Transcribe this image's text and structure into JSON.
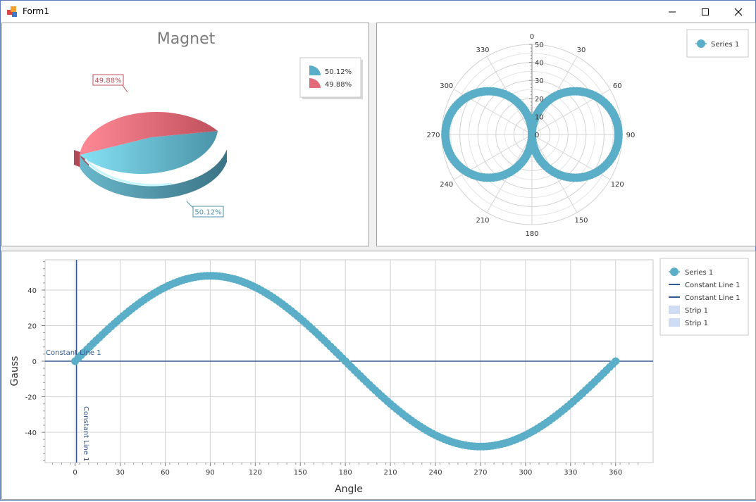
{
  "window": {
    "title": "Form1"
  },
  "pie": {
    "title": "Magnet",
    "legend": [
      "50.12%",
      "49.88%"
    ],
    "label_blue": "50.12%",
    "label_red": "49.88%",
    "colors": {
      "blue": "#5aaec8",
      "red": "#e36b79"
    }
  },
  "polar": {
    "legend": "Series 1",
    "angle_labels": [
      "0",
      "30",
      "60",
      "90",
      "120",
      "150",
      "180",
      "210",
      "240",
      "270",
      "300",
      "330"
    ],
    "radial_labels": [
      "0",
      "10",
      "20",
      "30",
      "40",
      "50"
    ]
  },
  "line": {
    "legend": [
      "Series 1",
      "Constant Line 1",
      "Constant Line 1",
      "Strip 1",
      "Strip 1"
    ],
    "const_h_label": "Constant Line 1",
    "const_v_label": "Constant Line 1",
    "xlabel": "Angle",
    "ylabel": "Gauss",
    "xticks": [
      "0",
      "30",
      "60",
      "90",
      "120",
      "150",
      "180",
      "210",
      "240",
      "270",
      "300",
      "330",
      "360"
    ],
    "yticks": [
      "40",
      "20",
      "0",
      "-20",
      "-40"
    ]
  },
  "chart_data": [
    {
      "type": "pie",
      "title": "Magnet",
      "categories": [
        "50.12%",
        "49.88%"
      ],
      "values": [
        50.12,
        49.88
      ],
      "colors": [
        "#5aaec8",
        "#e36b79"
      ],
      "legend": "top-right"
    },
    {
      "type": "scatter",
      "subtype": "polar",
      "series": [
        {
          "name": "Series 1",
          "function": "r = 48*|sin(theta)|",
          "theta_range": [
            0,
            360
          ],
          "step": 2
        }
      ],
      "angle_ticks": [
        0,
        30,
        60,
        90,
        120,
        150,
        180,
        210,
        240,
        270,
        300,
        330
      ],
      "radial_ticks": [
        0,
        10,
        20,
        30,
        40,
        50
      ],
      "rlim": [
        0,
        50
      ],
      "legend": "top-right"
    },
    {
      "type": "line",
      "series": [
        {
          "name": "Series 1",
          "function": "y = 48*sin(x deg)",
          "x_range": [
            0,
            360
          ],
          "step": 2
        }
      ],
      "constant_lines": [
        {
          "name": "Constant Line 1",
          "axis": "y",
          "value": 0
        },
        {
          "name": "Constant Line 1",
          "axis": "x",
          "value": 0
        }
      ],
      "xlabel": "Angle",
      "ylabel": "Gauss",
      "xlim": [
        -20,
        385
      ],
      "ylim": [
        -57,
        57
      ],
      "xticks": [
        0,
        30,
        60,
        90,
        120,
        150,
        180,
        210,
        240,
        270,
        300,
        330,
        360
      ],
      "yticks": [
        40,
        20,
        0,
        -20,
        -40
      ],
      "grid": true,
      "legend": "right"
    }
  ]
}
